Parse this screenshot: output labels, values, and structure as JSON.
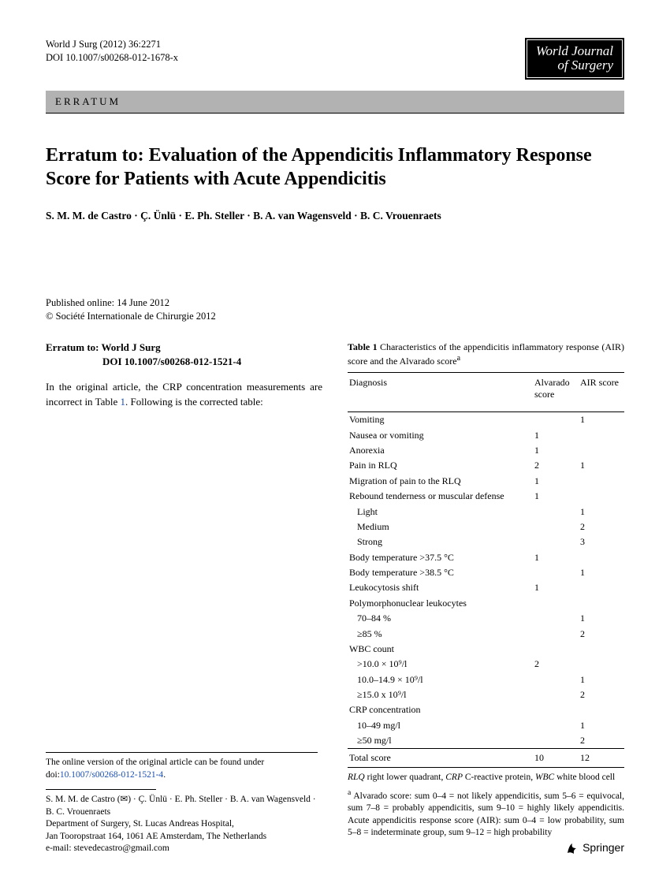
{
  "header": {
    "citation_line1": "World J Surg (2012) 36:2271",
    "citation_line2": "DOI 10.1007/s00268-012-1678-x",
    "logo_line1": "World Journal",
    "logo_line2": "of Surgery"
  },
  "erratum_bar": "ERRATUM",
  "title": "Erratum to: Evaluation of the Appendicitis Inflammatory Response Score for Patients with Acute Appendicitis",
  "authors": "S. M. M. de Castro · Ç. Ünlü · E. Ph. Steller · B. A. van Wagensveld · B. C. Vrouenraets",
  "pub": {
    "online": "Published online: 14 June 2012",
    "copyright": "© Société Internationale de Chirurgie 2012"
  },
  "left": {
    "erratum_to": "Erratum to: World J Surg",
    "erratum_doi": "DOI 10.1007/s00268-012-1521-4",
    "body_a": "In the original article, the CRP concentration measurements are incorrect in Table ",
    "body_link": "1",
    "body_b": ". Following is the corrected table:"
  },
  "table": {
    "caption_bold": "Table 1",
    "caption_rest": " Characteristics of the appendicitis inflammatory response (AIR) score and the Alvarado score",
    "sup": "a",
    "head_diag": "Diagnosis",
    "head_alv": "Alvarado score",
    "head_air": "AIR score",
    "rows": [
      {
        "label": "Vomiting",
        "alv": "",
        "air": "1",
        "indent": false
      },
      {
        "label": "Nausea or vomiting",
        "alv": "1",
        "air": "",
        "indent": false
      },
      {
        "label": "Anorexia",
        "alv": "1",
        "air": "",
        "indent": false
      },
      {
        "label": "Pain in RLQ",
        "alv": "2",
        "air": "1",
        "indent": false
      },
      {
        "label": "Migration of pain to the RLQ",
        "alv": "1",
        "air": "",
        "indent": false
      },
      {
        "label": "Rebound tenderness or muscular defense",
        "alv": "1",
        "air": "",
        "indent": false
      },
      {
        "label": "Light",
        "alv": "",
        "air": "1",
        "indent": true
      },
      {
        "label": "Medium",
        "alv": "",
        "air": "2",
        "indent": true
      },
      {
        "label": "Strong",
        "alv": "",
        "air": "3",
        "indent": true
      },
      {
        "label": "Body temperature >37.5 °C",
        "alv": "1",
        "air": "",
        "indent": false
      },
      {
        "label": "Body temperature >38.5 °C",
        "alv": "",
        "air": "1",
        "indent": false
      },
      {
        "label": "Leukocytosis shift",
        "alv": "1",
        "air": "",
        "indent": false
      },
      {
        "label": "Polymorphonuclear leukocytes",
        "alv": "",
        "air": "",
        "indent": false
      },
      {
        "label": "70–84 %",
        "alv": "",
        "air": "1",
        "indent": true
      },
      {
        "label": "≥85 %",
        "alv": "",
        "air": "2",
        "indent": true
      },
      {
        "label": "WBC count",
        "alv": "",
        "air": "",
        "indent": false
      },
      {
        "label": ">10.0 × 10⁹/l",
        "alv": "2",
        "air": "",
        "indent": true
      },
      {
        "label": "10.0–14.9 × 10⁹/l",
        "alv": "",
        "air": "1",
        "indent": true
      },
      {
        "label": "≥15.0 x 10⁹/l",
        "alv": "",
        "air": "2",
        "indent": true
      },
      {
        "label": "CRP concentration",
        "alv": "",
        "air": "",
        "indent": false
      },
      {
        "label": "10–49 mg/l",
        "alv": "",
        "air": "1",
        "indent": true
      },
      {
        "label": "≥50 mg/l",
        "alv": "",
        "air": "2",
        "indent": true
      }
    ],
    "total": {
      "label": "Total score",
      "alv": "10",
      "air": "12"
    },
    "notes_abbr_html": "<span class='italic'>RLQ</span> right lower quadrant, <span class='italic'>CRP</span> C-reactive protein, <span class='italic'>WBC</span> white blood cell",
    "notes_a": "Alvarado score: sum 0–4 = not likely appendicitis, sum 5–6 = equivocal, sum 7–8 = probably appendicitis, sum 9–10 = highly likely appendicitis. Acute appendicitis response score (AIR): sum 0–4 = low probability, sum 5–8 = indeterminate group, sum 9–12 = high probability"
  },
  "footer": {
    "online_a": "The online version of the original article can be found under doi:",
    "online_link": "10.1007/s00268-012-1521-4",
    "online_b": ".",
    "authors_line": "S. M. M. de Castro (✉) · Ç. Ünlü · E. Ph. Steller · B. A. van Wagensveld · B. C. Vrouenraets",
    "dept": "Department of Surgery, St. Lucas Andreas Hospital,",
    "addr": "Jan Tooropstraat 164, 1061 AE Amsterdam, The Netherlands",
    "email_label": "e-mail: ",
    "email": "stevedecastro@gmail.com"
  },
  "publisher": "Springer"
}
